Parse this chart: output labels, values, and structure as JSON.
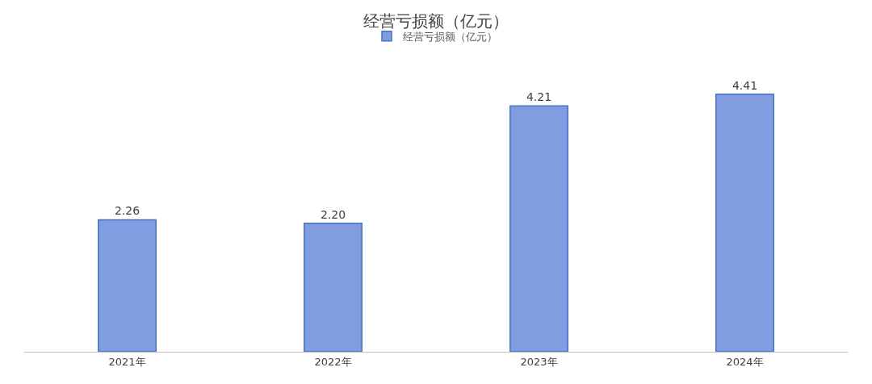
{
  "chart_data": {
    "type": "bar",
    "title": "经营亏损额（亿元）",
    "categories": [
      "2021年",
      "2022年",
      "2023年",
      "2024年"
    ],
    "series": [
      {
        "name": "经营亏损额（亿元）",
        "color": "#7f9ddf",
        "values": [
          2.26,
          2.2,
          4.21,
          4.41
        ],
        "value_labels": [
          "2.26",
          "2.20",
          "4.21",
          "4.41"
        ]
      }
    ],
    "legend": "top"
  }
}
